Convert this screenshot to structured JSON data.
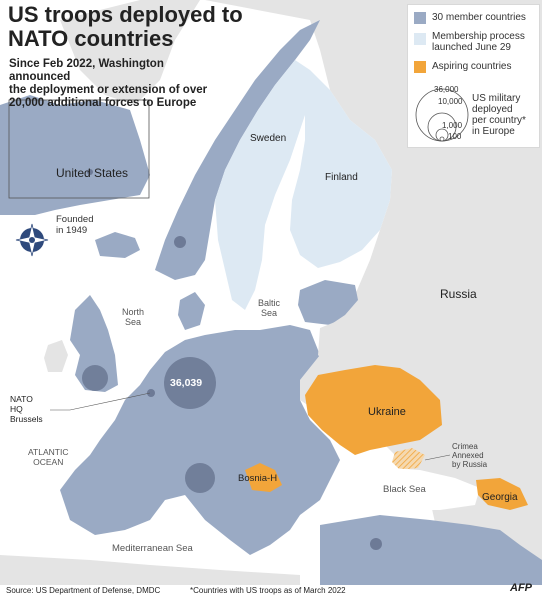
{
  "title_line1": "US troops deployed to",
  "title_line2": "NATO countries",
  "subtitle_line1": "Since Feb 2022, Washington announced",
  "subtitle_line2": "the deployment or extension of over",
  "subtitle_line3": "20,000 additional forces to Europe",
  "legend": {
    "members": "30 member countries",
    "process_line1": "Membership process",
    "process_line2": "launched June 29",
    "aspiring": "Aspiring countries",
    "size_values": [
      "36,000",
      "10,000",
      "1,000",
      "100"
    ],
    "size_label_line1": "US military",
    "size_label_line2": "deployed",
    "size_label_line3": "per country*",
    "size_label_line4": "in Europe"
  },
  "labels": {
    "us": "United States",
    "founded_line1": "Founded",
    "founded_line2": "in 1949",
    "sweden": "Sweden",
    "finland": "Finland",
    "russia": "Russia",
    "north_sea_line1": "North",
    "north_sea_line2": "Sea",
    "baltic_line1": "Baltic",
    "baltic_line2": "Sea",
    "nato_hq_line1": "NATO",
    "nato_hq_line2": "HQ",
    "nato_hq_line3": "Brussels",
    "atlantic_line1": "ATLANTIC",
    "atlantic_line2": "OCEAN",
    "ukraine": "Ukraine",
    "crimea_line1": "Crimea",
    "crimea_line2": "Annexed",
    "crimea_line3": "by Russia",
    "bosnia": "Bosnia-H",
    "black_sea": "Black Sea",
    "georgia": "Georgia",
    "med_sea": "Mediterranean Sea",
    "germany_value": "36,039"
  },
  "footer": {
    "source": "Source: US Department of Defense, DMDC",
    "note": "*Countries with US troops as of March 2022",
    "logo": "AFP"
  },
  "colors": {
    "member": "#9aaac4",
    "process": "#dde9f3",
    "aspiring": "#f2a53a",
    "other_land": "#e4e4e4",
    "bubble": "#6d7a96",
    "sea": "#ffffff"
  }
}
